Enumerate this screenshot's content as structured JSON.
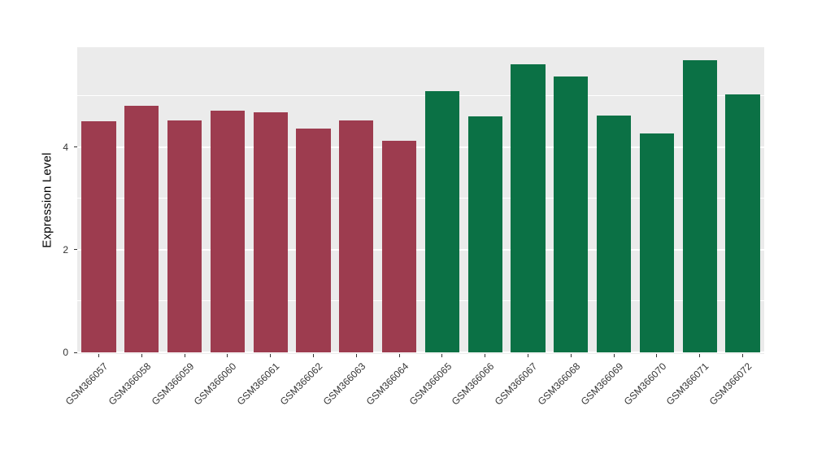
{
  "chart_data": {
    "type": "bar",
    "title": "",
    "xlabel": "",
    "ylabel": "Expression Level",
    "categories": [
      "GSM366057",
      "GSM366058",
      "GSM366059",
      "GSM366060",
      "GSM366061",
      "GSM366062",
      "GSM366063",
      "GSM366064",
      "GSM366065",
      "GSM366066",
      "GSM366067",
      "GSM366068",
      "GSM366069",
      "GSM366070",
      "GSM366071",
      "GSM366072"
    ],
    "values": [
      4.5,
      4.8,
      4.52,
      4.72,
      4.68,
      4.37,
      4.52,
      4.12,
      5.1,
      4.6,
      5.62,
      5.38,
      4.62,
      4.27,
      5.7,
      5.03
    ],
    "bar_colors": [
      "#9D3C4F",
      "#9D3C4F",
      "#9D3C4F",
      "#9D3C4F",
      "#9D3C4F",
      "#9D3C4F",
      "#9D3C4F",
      "#9D3C4F",
      "#0B7145",
      "#0B7145",
      "#0B7145",
      "#0B7145",
      "#0B7145",
      "#0B7145",
      "#0B7145",
      "#0B7145"
    ],
    "group_colors": {
      "left_group": "#9D3C4F",
      "right_group": "#0B7145"
    },
    "yticks": [
      0,
      2,
      4
    ],
    "yticks_minor": [
      1,
      3,
      5
    ],
    "ylim": [
      0,
      5.95
    ],
    "grid": "on",
    "legend": "none",
    "panel_background": "#EBEBEB",
    "grid_color": "#FFFFFF",
    "axis_text_color": "#333333",
    "bar_width_ratio": 0.8
  }
}
